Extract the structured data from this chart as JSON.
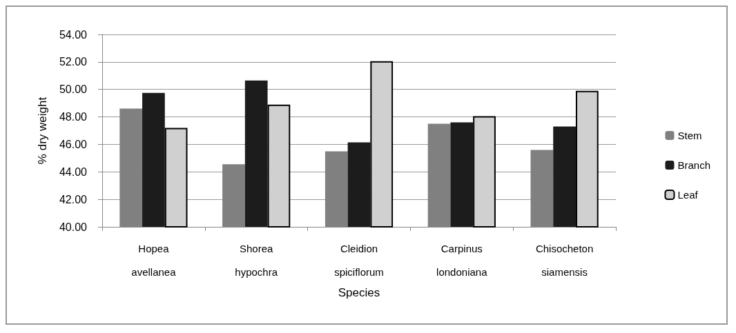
{
  "chart_data": {
    "type": "bar",
    "xlabel": "Species",
    "ylabel": "% dry weight",
    "categories": [
      "Hopea avellanea",
      "Shorea hypochra",
      "Cleidion spiciflorum",
      "Carpinus londoniana",
      "Chisocheton siamensis"
    ],
    "series": [
      {
        "name": "Stem",
        "color": "#808080",
        "values": [
          48.6,
          44.55,
          45.5,
          47.5,
          45.6
        ]
      },
      {
        "name": "Branch",
        "color": "#1c1c1c",
        "values": [
          49.75,
          50.65,
          46.15,
          47.6,
          47.3
        ]
      },
      {
        "name": "Leaf",
        "color": "#d0d0d0",
        "values": [
          47.2,
          48.9,
          52.05,
          48.05,
          49.9
        ]
      }
    ],
    "ylim": [
      40,
      54
    ],
    "yticks": [
      {
        "value": 40,
        "label": "40.00"
      },
      {
        "value": 42,
        "label": "42.00"
      },
      {
        "value": 44,
        "label": "44.00"
      },
      {
        "value": 46,
        "label": "46.00"
      },
      {
        "value": 48,
        "label": "48.00"
      },
      {
        "value": 50,
        "label": "50.00"
      },
      {
        "value": 52,
        "label": "52.00"
      },
      {
        "value": 54,
        "label": "54.00"
      }
    ],
    "grid": "y",
    "legend": "right"
  }
}
